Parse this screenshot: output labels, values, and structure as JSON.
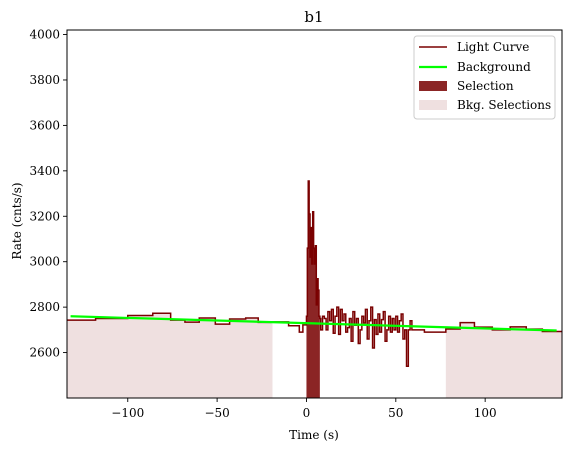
{
  "chart_data": {
    "type": "line",
    "title": "b1",
    "xlabel": "Time (s)",
    "ylabel": "Rate (cnts/s)",
    "xlim": [
      -134,
      143
    ],
    "ylim": [
      2400,
      4020
    ],
    "x_ticks": [
      -100,
      -50,
      0,
      50,
      100
    ],
    "x_tick_labels": [
      "−100",
      "−50",
      "0",
      "50",
      "100"
    ],
    "y_ticks": [
      2600,
      2800,
      3000,
      3200,
      3400,
      3600,
      3800,
      4000
    ],
    "y_tick_labels": [
      "2600",
      "2800",
      "3000",
      "3200",
      "3400",
      "3600",
      "3800",
      "4000"
    ],
    "legend": {
      "position": "upper right",
      "entries": [
        "Light Curve",
        "Background",
        "Selection",
        "Bkg. Selections"
      ]
    },
    "colors": {
      "light_curve": "#7a0000",
      "background": "#00ff00",
      "selection": "#8b2525",
      "bkg_selection": "#efe0e0"
    },
    "background_line": {
      "x": [
        -132,
        140
      ],
      "y": [
        2760,
        2697
      ]
    },
    "bkg_selections": [
      [
        -134,
        -19
      ],
      [
        78,
        143
      ]
    ],
    "selection": [
      0,
      7.5
    ],
    "light_curve": {
      "x_edges": [
        -134,
        -118,
        -100,
        -86,
        -76,
        -68,
        -60,
        -51,
        -43,
        -34,
        -27,
        -20,
        -10,
        -4,
        -2,
        0,
        0.5,
        1,
        1.5,
        2,
        2.5,
        3,
        3.5,
        4,
        4.5,
        5,
        5.5,
        6,
        6.5,
        7,
        7.5,
        8,
        9,
        10,
        11,
        12,
        13,
        14,
        15,
        16,
        17,
        18,
        19,
        20,
        21,
        22,
        23,
        24,
        25,
        26,
        27,
        28,
        29,
        30,
        31,
        32,
        33,
        34,
        35,
        36,
        37,
        38,
        39,
        40,
        41,
        42,
        43,
        44,
        45,
        46,
        47,
        48,
        49,
        50,
        51,
        52,
        53,
        54,
        55,
        56,
        57,
        58,
        59,
        60,
        66,
        78,
        86,
        94,
        104,
        114,
        123,
        132,
        143
      ],
      "rates": [
        2743,
        2750,
        2763,
        2773,
        2743,
        2734,
        2752,
        2725,
        2748,
        2752,
        2733,
        2735,
        2718,
        2690,
        2722,
        2760,
        3060,
        3355,
        3210,
        3020,
        3150,
        2990,
        3220,
        3060,
        2990,
        3070,
        2810,
        2925,
        2875,
        2760,
        2750,
        2700,
        2760,
        2750,
        2700,
        2780,
        2740,
        2790,
        2685,
        2760,
        2800,
        2680,
        2790,
        2740,
        2770,
        2690,
        2710,
        2750,
        2650,
        2780,
        2720,
        2750,
        2640,
        2700,
        2760,
        2730,
        2790,
        2660,
        2740,
        2800,
        2620,
        2745,
        2680,
        2770,
        2690,
        2745,
        2780,
        2650,
        2700,
        2760,
        2690,
        2750,
        2700,
        2760,
        2690,
        2740,
        2770,
        2660,
        2700,
        2540,
        2700,
        2740,
        2700,
        2700,
        2690,
        2704,
        2732,
        2712,
        2700,
        2713,
        2703,
        2693
      ]
    }
  }
}
